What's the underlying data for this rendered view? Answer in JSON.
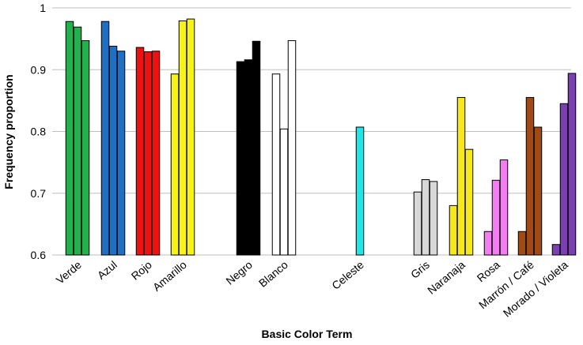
{
  "chart_data": {
    "type": "bar",
    "xlabel": "Basic Color Term",
    "ylabel": "Frequency proportion",
    "ylim": [
      0.6,
      1.0
    ],
    "yticks": [
      "0.6",
      "0.7",
      "0.8",
      "0.9",
      "1"
    ],
    "grid": true,
    "baseline": 0.6,
    "categories": [
      {
        "label": "Verde",
        "color": "#22b14c",
        "values": [
          0.978,
          0.969,
          0.947
        ]
      },
      {
        "label": "Azul",
        "color": "#1f6fc5",
        "values": [
          0.978,
          0.938,
          0.93
        ]
      },
      {
        "label": "Rojo",
        "color": "#ee1111",
        "values": [
          0.936,
          0.929,
          0.93
        ]
      },
      {
        "label": "Amarillo",
        "color": "#f7f314",
        "values": [
          0.893,
          0.979,
          0.982
        ]
      },
      {
        "label": "Negro",
        "color": "#000000",
        "values": [
          0.913,
          0.916,
          0.946
        ]
      },
      {
        "label": "Blanco",
        "color": "#ffffff",
        "values": [
          0.893,
          0.804,
          0.947
        ]
      },
      {
        "label": "Celeste",
        "color": "#22e6e6",
        "values": [
          null,
          0.807,
          null
        ]
      },
      {
        "label": "Gris",
        "color": "#d8d8d8",
        "values": [
          0.702,
          0.722,
          0.719
        ]
      },
      {
        "label": "Naranaja",
        "color": "#f7e81a",
        "values": [
          0.68,
          0.855,
          0.771
        ]
      },
      {
        "label": "Rosa",
        "color": "#f27ef2",
        "values": [
          0.638,
          0.721,
          0.754
        ]
      },
      {
        "label": "Marrón / Café",
        "color": "#a04a15",
        "values": [
          0.638,
          0.855,
          0.807
        ]
      },
      {
        "label": "Morado / Violeta",
        "color": "#7a3fb0",
        "values": [
          0.617,
          0.845,
          0.894
        ]
      }
    ]
  }
}
